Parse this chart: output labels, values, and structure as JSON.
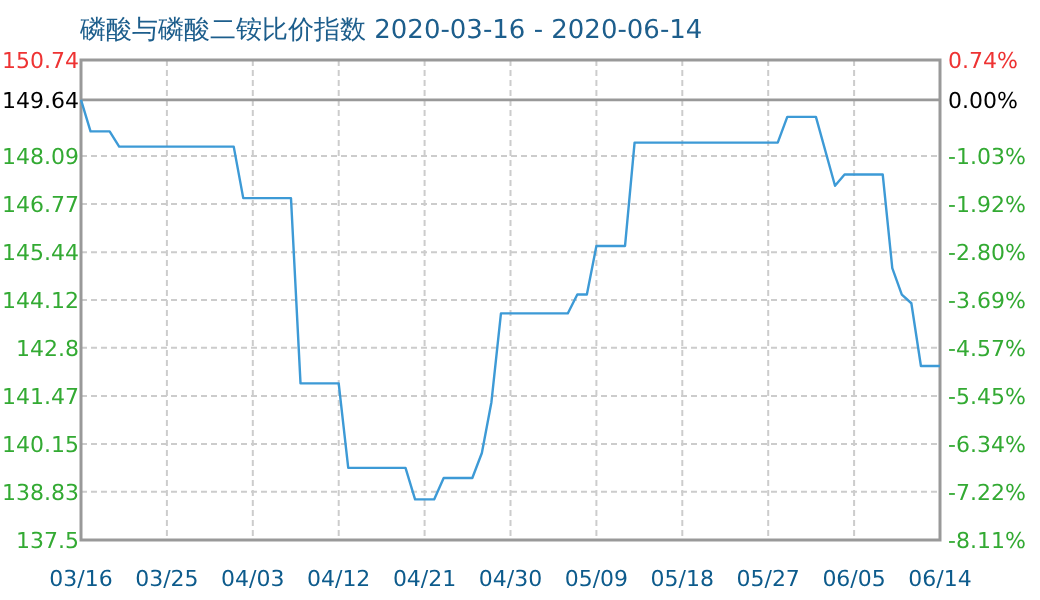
{
  "chart_data": {
    "type": "line",
    "title": "磷酸与磷酸二铵比价指数 2020-03-16 - 2020-06-14",
    "x": [
      "2020-03-16",
      "2020-03-17",
      "2020-03-19",
      "2020-03-20",
      "2020-04-01",
      "2020-04-02",
      "2020-04-07",
      "2020-04-08",
      "2020-04-12",
      "2020-04-13",
      "2020-04-19",
      "2020-04-20",
      "2020-04-22",
      "2020-04-23",
      "2020-04-26",
      "2020-04-27",
      "2020-04-28",
      "2020-04-29",
      "2020-05-06",
      "2020-05-07",
      "2020-05-08",
      "2020-05-09",
      "2020-05-12",
      "2020-05-13",
      "2020-05-28",
      "2020-05-29",
      "2020-06-01",
      "2020-06-03",
      "2020-06-04",
      "2020-06-08",
      "2020-06-09",
      "2020-06-10",
      "2020-06-11",
      "2020-06-12",
      "2020-06-14"
    ],
    "series": [
      {
        "color": "#3d9ad6",
        "values": [
          149.64,
          148.77,
          148.77,
          148.35,
          148.35,
          146.93,
          146.93,
          141.82,
          141.82,
          139.49,
          139.49,
          138.62,
          138.62,
          139.21,
          139.21,
          139.9,
          141.3,
          143.75,
          143.75,
          144.27,
          144.27,
          145.61,
          145.61,
          148.46,
          148.46,
          149.17,
          149.17,
          147.27,
          147.58,
          147.58,
          145.0,
          144.27,
          144.03,
          142.3,
          142.3
        ]
      }
    ],
    "xlim": [
      "2020-03-16",
      "2020-06-14"
    ],
    "xticks": [
      {
        "value": "2020-03-16",
        "label": "03/16"
      },
      {
        "value": "2020-03-25",
        "label": "03/25"
      },
      {
        "value": "2020-04-03",
        "label": "04/03"
      },
      {
        "value": "2020-04-12",
        "label": "04/12"
      },
      {
        "value": "2020-04-21",
        "label": "04/21"
      },
      {
        "value": "2020-04-30",
        "label": "04/30"
      },
      {
        "value": "2020-05-09",
        "label": "05/09"
      },
      {
        "value": "2020-05-18",
        "label": "05/18"
      },
      {
        "value": "2020-05-27",
        "label": "05/27"
      },
      {
        "value": "2020-06-05",
        "label": "06/05"
      },
      {
        "value": "2020-06-14",
        "label": "06/14"
      }
    ],
    "ylim": [
      137.5,
      150.74
    ],
    "yticks": [
      137.5,
      138.83,
      140.15,
      141.47,
      142.8,
      144.12,
      145.44,
      146.77,
      148.09,
      149.64,
      150.74
    ],
    "y2lim": [
      -8.11,
      0.74
    ],
    "y2ticks": [
      {
        "value": -8.11,
        "label": "-8.11%"
      },
      {
        "value": -7.22,
        "label": "-7.22%"
      },
      {
        "value": -6.34,
        "label": "-6.34%"
      },
      {
        "value": -5.45,
        "label": "-5.45%"
      },
      {
        "value": -4.57,
        "label": "-4.57%"
      },
      {
        "value": -3.69,
        "label": "-3.69%"
      },
      {
        "value": -2.8,
        "label": "-2.80%"
      },
      {
        "value": -1.92,
        "label": "-1.92%"
      },
      {
        "value": -1.03,
        "label": "-1.03%"
      },
      {
        "value": 0,
        "label": "0.00%"
      },
      {
        "value": 0.74,
        "label": "0.74%"
      }
    ],
    "ref_lines": [
      {
        "axis": "y",
        "value": 149.64,
        "color": "#999999"
      }
    ],
    "grid": true
  }
}
